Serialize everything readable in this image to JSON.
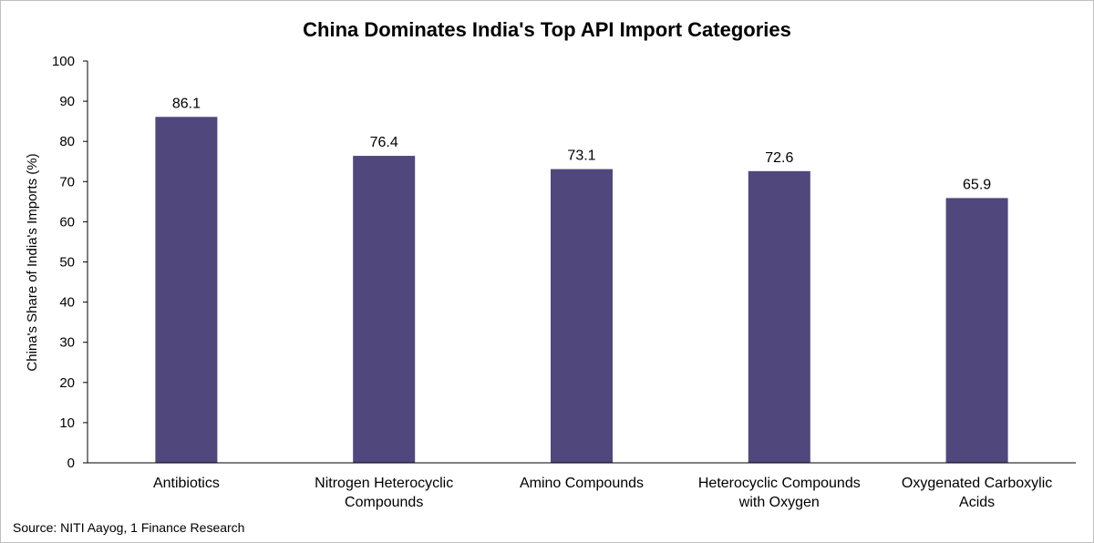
{
  "chart_data": {
    "type": "bar",
    "title": "China Dominates India's Top API Import Categories",
    "ylabel": "China's Share of India's Imports (%)",
    "xlabel": "",
    "categories": [
      [
        "Antibiotics"
      ],
      [
        "Nitrogen Heterocyclic",
        "Compounds"
      ],
      [
        "Amino Compounds"
      ],
      [
        "Heterocyclic Compounds",
        "with Oxygen"
      ],
      [
        "Oxygenated Carboxylic",
        "Acids"
      ]
    ],
    "values": [
      86.1,
      76.4,
      73.1,
      72.6,
      65.9
    ],
    "data_labels": [
      "86.1",
      "76.4",
      "73.1",
      "72.6",
      "65.9"
    ],
    "ylim": [
      0,
      100
    ],
    "yticks": [
      0,
      10,
      20,
      30,
      40,
      50,
      60,
      70,
      80,
      90,
      100
    ],
    "grid": false,
    "bar_color": "#50477c"
  },
  "source": "Source: NITI Aayog, 1 Finance Research"
}
